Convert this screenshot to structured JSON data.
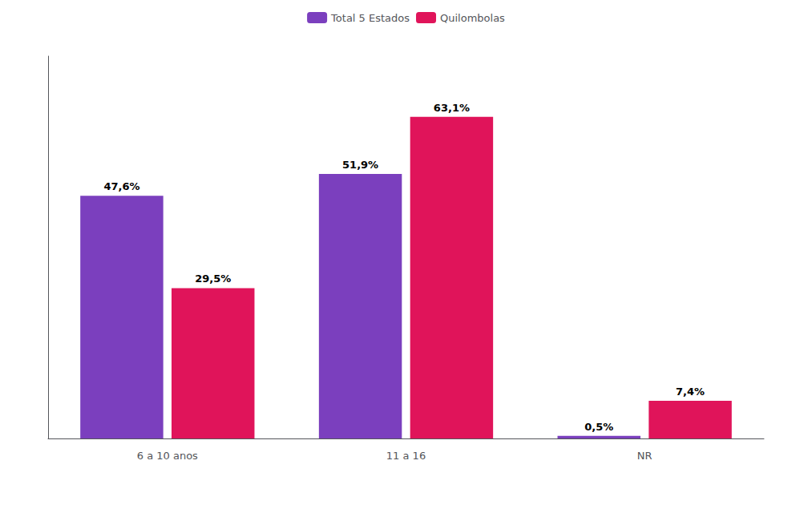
{
  "chart_data": {
    "type": "bar",
    "categories": [
      "6 a 10 anos",
      "11 a 16",
      "NR"
    ],
    "series": [
      {
        "name": "Total 5 Estados",
        "color": "#7B3FBE",
        "values": [
          47.6,
          51.9,
          0.5
        ],
        "value_labels": [
          "47,6%",
          "51,9%",
          "0,5%"
        ]
      },
      {
        "name": "Quilombolas",
        "color": "#E0145A",
        "values": [
          29.5,
          63.1,
          7.4
        ],
        "value_labels": [
          "29,5%",
          "63,1%",
          "7,4%"
        ]
      }
    ],
    "ylim": [
      0,
      75
    ],
    "tick_labels": "x",
    "data_labels": true,
    "legend": "top",
    "grid": false
  }
}
